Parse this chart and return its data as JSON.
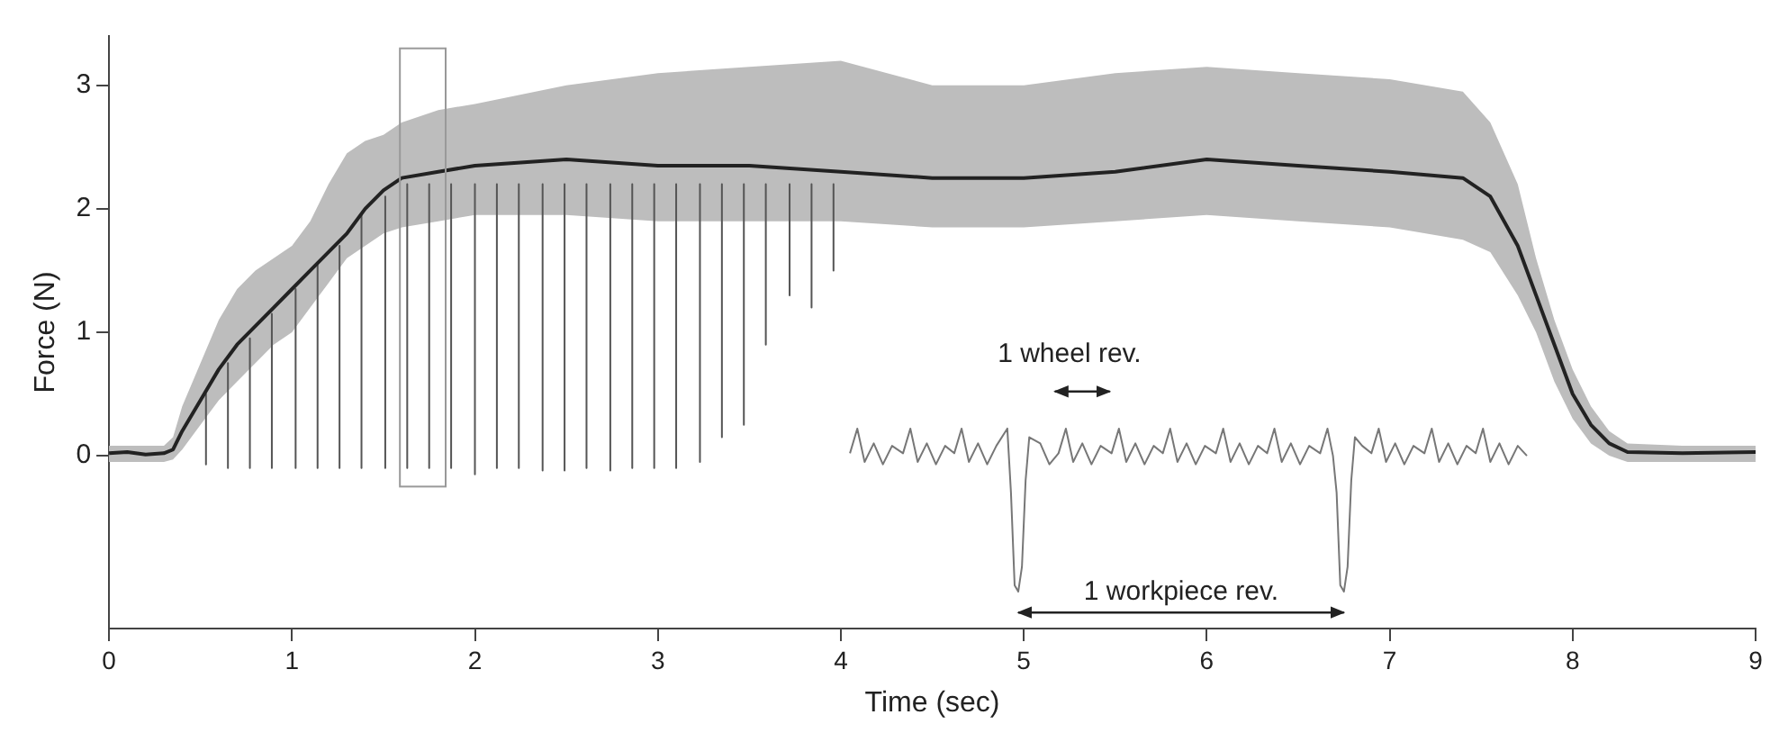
{
  "chart_data": {
    "type": "line",
    "xlabel": "Time (sec)",
    "ylabel": "Force (N)",
    "xlim": [
      0,
      9
    ],
    "xticks": [
      0,
      1,
      2,
      3,
      4,
      5,
      6,
      7,
      8,
      9
    ],
    "ylim": [
      -1.4,
      3.4
    ],
    "yticks": [
      0,
      1,
      2,
      3
    ],
    "grid": false,
    "legend": false,
    "marker": "none",
    "line_style": "solid",
    "annotations": [
      "1 wheel rev.",
      "1 workpiece rev."
    ],
    "series": [
      {
        "color": "#222222",
        "x": [
          0,
          0.1,
          0.2,
          0.3,
          0.35,
          0.4,
          0.5,
          0.6,
          0.7,
          0.8,
          0.9,
          1.0,
          1.1,
          1.2,
          1.3,
          1.4,
          1.5,
          1.6,
          1.8,
          2.0,
          2.5,
          3.0,
          3.5,
          4.0,
          4.5,
          5.0,
          5.5,
          6.0,
          6.5,
          7.0,
          7.4,
          7.55,
          7.7,
          7.8,
          7.9,
          8.0,
          8.1,
          8.2,
          8.3,
          8.6,
          9.0
        ],
        "values": [
          0.02,
          0.03,
          0.01,
          0.02,
          0.05,
          0.2,
          0.45,
          0.7,
          0.9,
          1.05,
          1.2,
          1.35,
          1.5,
          1.65,
          1.8,
          2.0,
          2.15,
          2.25,
          2.3,
          2.35,
          2.4,
          2.35,
          2.35,
          2.3,
          2.25,
          2.25,
          2.3,
          2.4,
          2.35,
          2.3,
          2.25,
          2.1,
          1.7,
          1.3,
          0.9,
          0.5,
          0.25,
          0.1,
          0.03,
          0.02,
          0.03
        ],
        "lower": [
          -0.05,
          -0.05,
          -0.05,
          -0.05,
          -0.03,
          0.05,
          0.25,
          0.45,
          0.6,
          0.75,
          0.9,
          1.0,
          1.2,
          1.4,
          1.6,
          1.7,
          1.8,
          1.85,
          1.9,
          1.95,
          1.95,
          1.9,
          1.9,
          1.9,
          1.85,
          1.85,
          1.9,
          1.95,
          1.9,
          1.85,
          1.75,
          1.65,
          1.3,
          1.0,
          0.6,
          0.3,
          0.1,
          0.0,
          -0.05,
          -0.05,
          -0.05
        ],
        "upper": [
          0.08,
          0.08,
          0.08,
          0.08,
          0.15,
          0.4,
          0.75,
          1.1,
          1.35,
          1.5,
          1.6,
          1.7,
          1.9,
          2.2,
          2.45,
          2.55,
          2.6,
          2.7,
          2.8,
          2.85,
          3.0,
          3.1,
          3.15,
          3.2,
          3.0,
          3.0,
          3.1,
          3.15,
          3.1,
          3.05,
          2.95,
          2.7,
          2.2,
          1.6,
          1.1,
          0.7,
          0.4,
          0.2,
          0.1,
          0.08,
          0.08
        ]
      },
      {
        "color": "#555555",
        "x": [
          0.53,
          0.53,
          0.65,
          0.65,
          0.77,
          0.77,
          0.89,
          0.89,
          1.02,
          1.02,
          1.14,
          1.14,
          1.26,
          1.26,
          1.38,
          1.38,
          1.51,
          1.51,
          1.63,
          1.63,
          1.75,
          1.75,
          1.87,
          1.87,
          2.0,
          2.0,
          2.12,
          2.12,
          2.24,
          2.24,
          2.37,
          2.37,
          2.49,
          2.49,
          2.61,
          2.61,
          2.74,
          2.74,
          2.86,
          2.86,
          2.98,
          2.98,
          3.1,
          3.1,
          3.23,
          3.23,
          3.35,
          3.35,
          3.47,
          3.47,
          3.59,
          3.59,
          3.72,
          3.72,
          3.84,
          3.84,
          3.96,
          3.96
        ],
        "values": [
          0.5,
          -0.07,
          0.75,
          -0.1,
          0.95,
          -0.1,
          1.15,
          -0.1,
          1.35,
          -0.1,
          1.55,
          -0.1,
          1.7,
          -0.1,
          1.95,
          -0.1,
          2.1,
          -0.1,
          2.2,
          -0.1,
          2.2,
          -0.1,
          2.2,
          -0.1,
          2.2,
          -0.15,
          2.2,
          -0.1,
          2.2,
          -0.1,
          2.2,
          -0.12,
          2.2,
          -0.12,
          2.2,
          -0.1,
          2.2,
          -0.12,
          2.2,
          -0.1,
          2.2,
          -0.1,
          2.2,
          -0.1,
          2.2,
          -0.05,
          2.2,
          0.15,
          2.2,
          0.25,
          2.2,
          0.9,
          2.2,
          1.3,
          2.2,
          1.2,
          2.2,
          1.5
        ]
      },
      {
        "color": "#777777",
        "x": [
          4.05,
          4.09,
          4.13,
          4.18,
          4.23,
          4.28,
          4.34,
          4.38,
          4.42,
          4.47,
          4.52,
          4.57,
          4.62,
          4.66,
          4.7,
          4.75,
          4.8,
          4.85,
          4.91,
          4.93,
          4.95,
          4.97,
          4.99,
          5.01,
          5.03,
          5.09,
          5.14,
          5.19,
          5.23,
          5.27,
          5.32,
          5.37,
          5.42,
          5.48,
          5.52,
          5.56,
          5.61,
          5.66,
          5.71,
          5.76,
          5.8,
          5.84,
          5.89,
          5.94,
          5.99,
          6.05,
          6.09,
          6.13,
          6.18,
          6.23,
          6.28,
          6.33,
          6.37,
          6.41,
          6.46,
          6.51,
          6.56,
          6.62,
          6.66,
          6.69,
          6.71,
          6.73,
          6.75,
          6.77,
          6.79,
          6.81,
          6.85,
          6.9,
          6.94,
          6.98,
          7.03,
          7.08,
          7.13,
          7.19,
          7.23,
          7.27,
          7.32,
          7.37,
          7.42,
          7.47,
          7.51,
          7.55,
          7.6,
          7.65,
          7.7,
          7.75
        ],
        "values": [
          0.02,
          0.22,
          -0.05,
          0.1,
          -0.07,
          0.08,
          0.02,
          0.22,
          -0.05,
          0.1,
          -0.07,
          0.08,
          0.02,
          0.22,
          -0.05,
          0.1,
          -0.07,
          0.08,
          0.22,
          -0.3,
          -1.05,
          -1.1,
          -0.9,
          -0.2,
          0.15,
          0.1,
          -0.07,
          0.02,
          0.22,
          -0.05,
          0.1,
          -0.07,
          0.08,
          0.02,
          0.22,
          -0.05,
          0.1,
          -0.07,
          0.08,
          0.02,
          0.22,
          -0.05,
          0.1,
          -0.07,
          0.08,
          0.02,
          0.22,
          -0.05,
          0.1,
          -0.07,
          0.08,
          0.02,
          0.22,
          -0.05,
          0.1,
          -0.07,
          0.08,
          0.02,
          0.22,
          0.0,
          -0.3,
          -1.05,
          -1.1,
          -0.9,
          -0.2,
          0.15,
          0.08,
          0.02,
          0.22,
          -0.05,
          0.1,
          -0.07,
          0.08,
          0.02,
          0.22,
          -0.05,
          0.1,
          -0.07,
          0.08,
          0.02,
          0.22,
          -0.05,
          0.1,
          -0.07,
          0.08,
          0.0
        ]
      }
    ]
  }
}
